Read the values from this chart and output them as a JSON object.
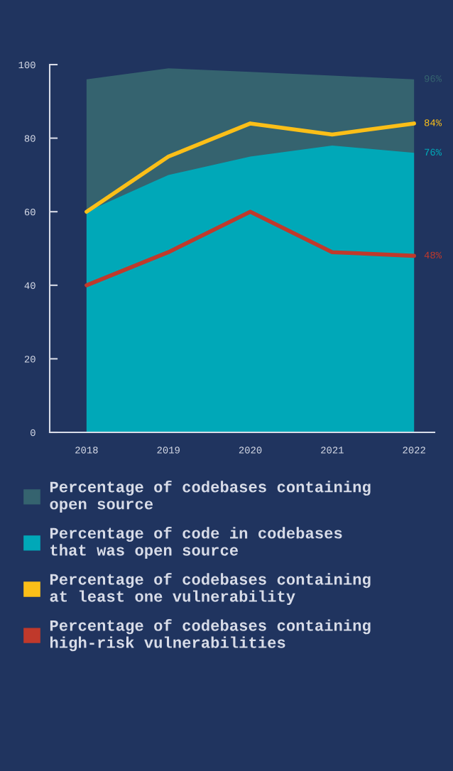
{
  "chart_data": {
    "type": "area",
    "categories": [
      "2018",
      "2019",
      "2020",
      "2021",
      "2022"
    ],
    "ylim": [
      0,
      100
    ],
    "yticks": [
      0,
      20,
      40,
      60,
      80,
      100
    ],
    "grid": false,
    "legend": "bottom",
    "series": [
      {
        "name": "Percentage of codebases containing open source",
        "color": "#35636f",
        "values": [
          96,
          99,
          98,
          97,
          96
        ],
        "value_labels": [
          null,
          null,
          null,
          null,
          "96%"
        ]
      },
      {
        "name": "Percentage of code in codebases that was open source",
        "color": "#00a8b8",
        "values": [
          60,
          70,
          75,
          78,
          76
        ],
        "value_labels": [
          null,
          null,
          null,
          null,
          "76%"
        ]
      },
      {
        "name": "Percentage of codebases containing at least one vulnerability",
        "type": "line",
        "color": "#fbbf18",
        "values": [
          60,
          75,
          84,
          81,
          84
        ],
        "value_labels": [
          null,
          null,
          null,
          null,
          "84%"
        ]
      },
      {
        "name": "Percentage of codebases containing high-risk vulnerabilities",
        "type": "line",
        "color": "#c0392b",
        "values": [
          40,
          49,
          60,
          49,
          48
        ],
        "value_labels": [
          null,
          null,
          null,
          null,
          "48%"
        ]
      }
    ]
  }
}
